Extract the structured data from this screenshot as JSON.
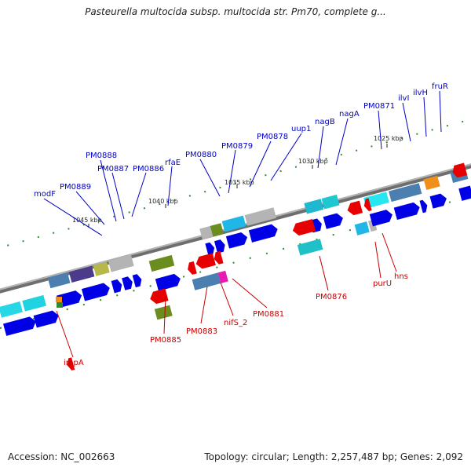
{
  "title": "Pasteurella multocida subsp. multocida str. Pm70, complete g...",
  "footer": {
    "accession": "Accession: NC_002663",
    "summary": "Topology: circular; Length: 2,257,487 bp; Genes: 2,092"
  },
  "colors": {
    "forward_label": "#0000c8",
    "reverse_label": "#c80000",
    "backbone": "#8c8c8c",
    "gene_blue": "#0000e6",
    "gene_red": "#e60000",
    "tick_green": "#2e8b2e"
  },
  "scale_labels": [
    "1045 kbp",
    "1040 kbp",
    "1035 kbp",
    "1030 kbp",
    "1025 kbp"
  ],
  "forward_genes": [
    "modF",
    "PM0889",
    "PM0888",
    "PM0887",
    "PM0886",
    "rfaE",
    "PM0880",
    "PM0879",
    "PM0878",
    "uup1",
    "nagB",
    "nagA",
    "PM0871",
    "ilvI",
    "ilvH",
    "fruR"
  ],
  "reverse_genes": [
    "impA",
    "PM0885",
    "PM0883",
    "nifS_2",
    "PM0881",
    "PM0876",
    "purU",
    "hns"
  ]
}
